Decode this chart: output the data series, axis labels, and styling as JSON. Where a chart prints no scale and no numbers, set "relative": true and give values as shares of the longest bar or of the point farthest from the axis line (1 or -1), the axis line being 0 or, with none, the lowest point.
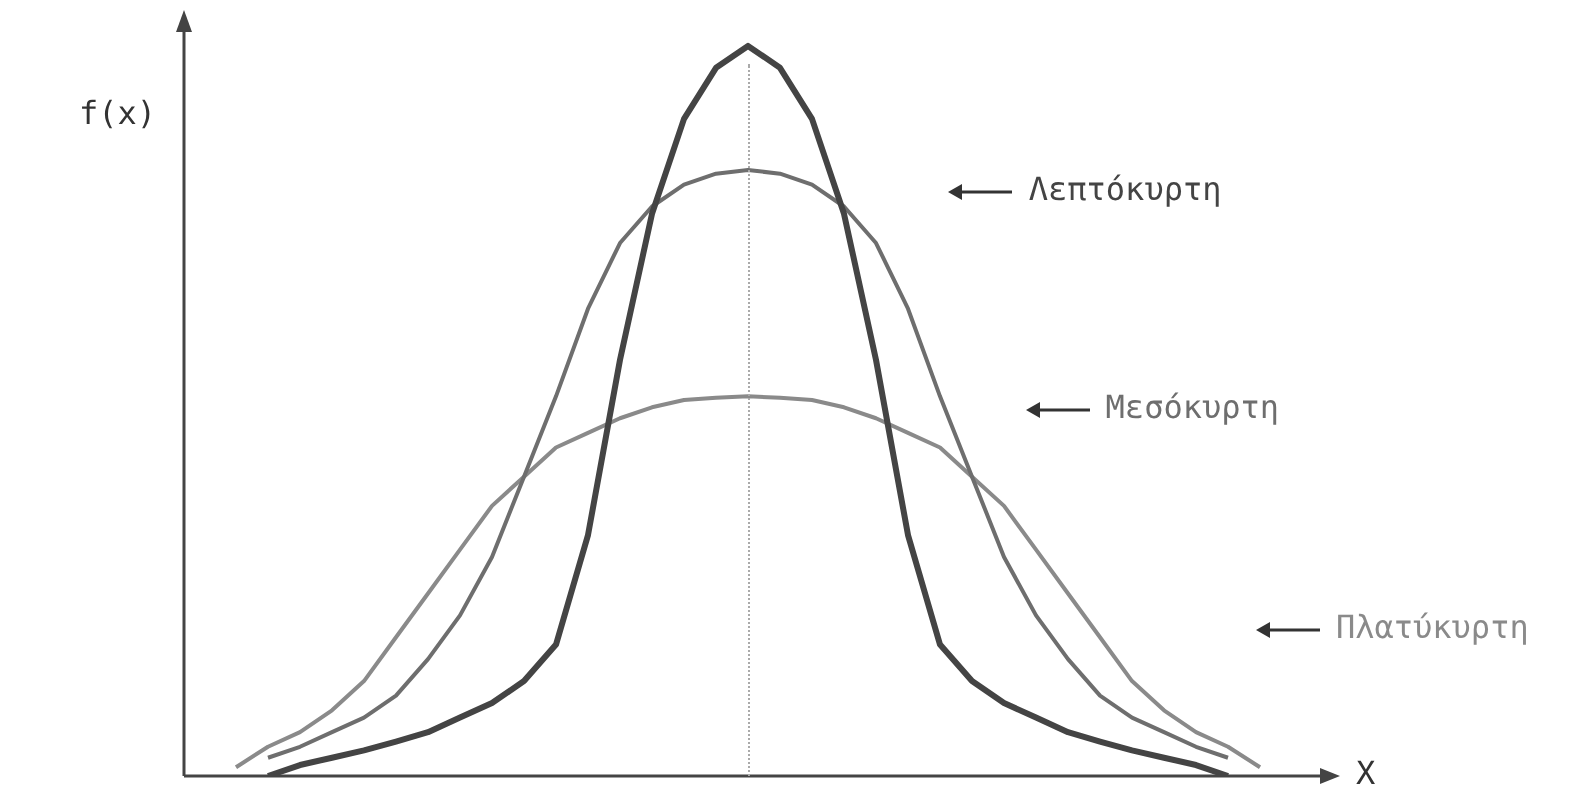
{
  "chart_data": {
    "type": "line",
    "relative": true,
    "xlabel": "X",
    "ylabel": "f(x)",
    "categories": [
      null,
      null,
      null,
      null,
      null,
      null,
      null,
      null,
      null,
      null,
      null,
      null,
      null,
      null,
      null,
      null,
      null,
      null,
      null,
      null,
      null,
      null,
      null,
      null,
      null,
      null,
      null,
      null,
      null,
      null,
      null,
      null,
      null
    ],
    "legend": "right",
    "marker": "none",
    "series": [
      {
        "name": "Λεπτόκυρτη",
        "color": "#444444",
        "values": [
          null,
          0,
          0.015,
          0.025,
          0.035,
          0.047,
          0.06,
          0.08,
          0.1,
          0.13,
          0.18,
          0.33,
          0.57,
          0.77,
          0.9,
          0.97,
          1,
          0.97,
          0.9,
          0.77,
          0.57,
          0.33,
          0.18,
          0.13,
          0.1,
          0.08,
          0.06,
          0.047,
          0.035,
          0.025,
          0.015,
          0,
          null
        ]
      },
      {
        "name": "Mεσόκυρτη",
        "color": "#6e6e6e",
        "values": [
          null,
          0.025,
          0.04,
          0.06,
          0.08,
          0.11,
          0.16,
          0.22,
          0.3,
          0.41,
          0.52,
          0.64,
          0.73,
          0.78,
          0.81,
          0.825,
          0.83,
          0.825,
          0.81,
          0.78,
          0.73,
          0.64,
          0.52,
          0.41,
          0.3,
          0.22,
          0.16,
          0.11,
          0.08,
          0.06,
          0.04,
          0.025,
          null
        ]
      },
      {
        "name": "Πλατύκυρτη",
        "color": "#8a8a8a",
        "values": [
          0.012,
          0.04,
          0.06,
          0.09,
          0.13,
          0.19,
          0.25,
          0.31,
          0.37,
          0.41,
          0.45,
          0.47,
          0.49,
          0.505,
          0.515,
          0.518,
          0.52,
          0.518,
          0.515,
          0.505,
          0.49,
          0.47,
          0.45,
          0.41,
          0.37,
          0.31,
          0.25,
          0.19,
          0.13,
          0.09,
          0.06,
          0.04,
          0.012
        ]
      }
    ]
  }
}
